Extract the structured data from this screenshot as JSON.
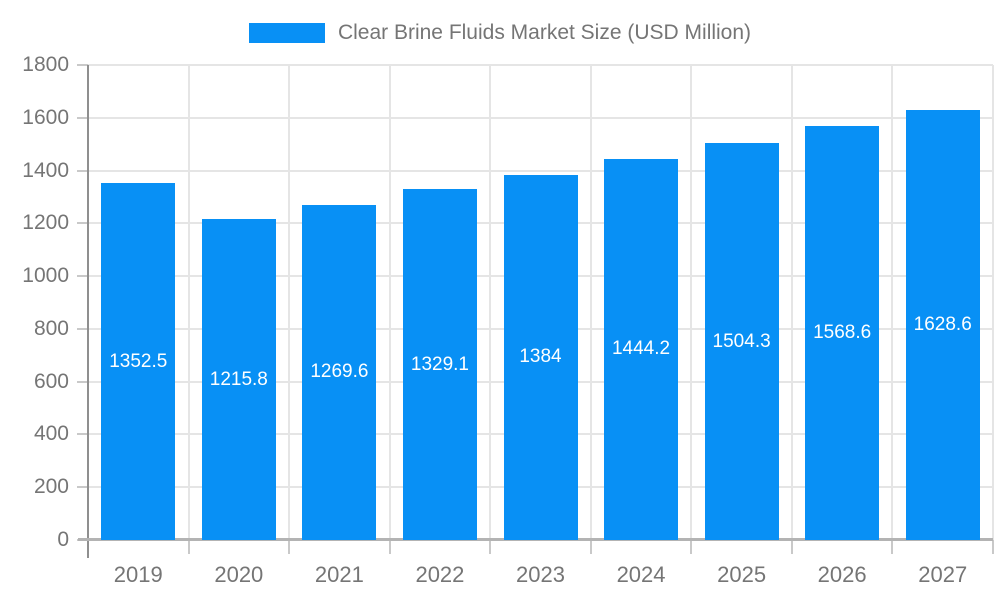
{
  "chart_data": {
    "type": "bar",
    "title": "Clear Brine Fluids Market Size (USD Million)",
    "categories": [
      "2019",
      "2020",
      "2021",
      "2022",
      "2023",
      "2024",
      "2025",
      "2026",
      "2027"
    ],
    "values": [
      1352.5,
      1215.8,
      1269.6,
      1329.1,
      1384,
      1444.2,
      1504.3,
      1568.6,
      1628.6
    ],
    "value_labels": [
      "1352.5",
      "1215.8",
      "1269.6",
      "1329.1",
      "1384",
      "1444.2",
      "1504.3",
      "1568.6",
      "1628.6"
    ],
    "xlabel": "",
    "ylabel": "",
    "ylim": [
      0,
      1800
    ],
    "yticks": [
      0,
      200,
      400,
      600,
      800,
      1000,
      1200,
      1400,
      1600,
      1800
    ],
    "grid": true,
    "legend_position": "top",
    "bar_color": "#0890f5",
    "value_label_color": "#ffffff",
    "axis_label_color": "#757575"
  }
}
